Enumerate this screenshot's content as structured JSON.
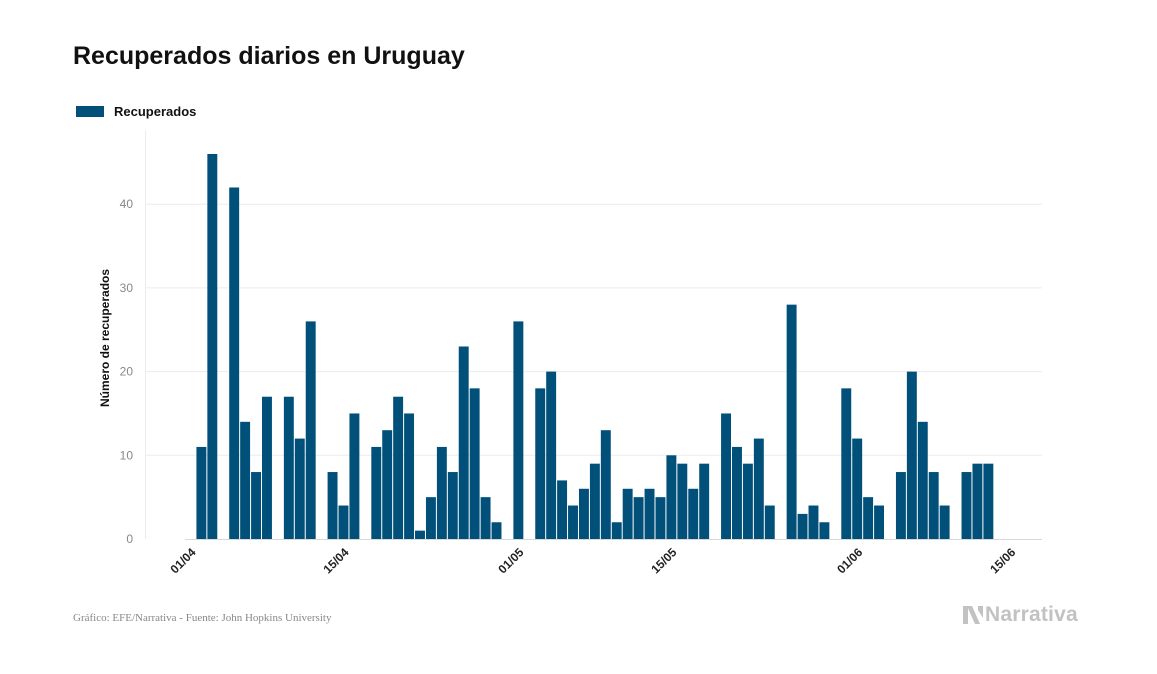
{
  "chart_data": {
    "type": "bar",
    "title": "Recuperados diarios en Uruguay",
    "ylabel": "Número de recuperados",
    "xlabel": "",
    "ylim": [
      0,
      46
    ],
    "yticks": [
      0,
      10,
      20,
      30,
      40
    ],
    "xtick_labels": [
      {
        "label": "01/04",
        "day_index": 0
      },
      {
        "label": "15/04",
        "day_index": 14
      },
      {
        "label": "01/05",
        "day_index": 30
      },
      {
        "label": "15/05",
        "day_index": 44
      },
      {
        "label": "01/06",
        "day_index": 61
      },
      {
        "label": "15/06",
        "day_index": 75
      }
    ],
    "categories": [
      "01/04",
      "02/04",
      "03/04",
      "04/04",
      "05/04",
      "06/04",
      "07/04",
      "08/04",
      "09/04",
      "10/04",
      "11/04",
      "12/04",
      "13/04",
      "14/04",
      "15/04",
      "16/04",
      "17/04",
      "18/04",
      "19/04",
      "20/04",
      "21/04",
      "22/04",
      "23/04",
      "24/04",
      "25/04",
      "26/04",
      "27/04",
      "28/04",
      "29/04",
      "30/04",
      "01/05",
      "02/05",
      "03/05",
      "04/05",
      "05/05",
      "06/05",
      "07/05",
      "08/05",
      "09/05",
      "10/05",
      "11/05",
      "12/05",
      "13/05",
      "14/05",
      "15/05",
      "16/05",
      "17/05",
      "18/05",
      "19/05",
      "20/05",
      "21/05",
      "22/05",
      "23/05",
      "24/05",
      "25/05",
      "26/05",
      "27/05",
      "28/05",
      "29/05",
      "30/05",
      "31/05",
      "01/06",
      "02/06",
      "03/06",
      "04/06",
      "05/06",
      "06/06",
      "07/06",
      "08/06",
      "09/06",
      "10/06",
      "11/06",
      "12/06",
      "13/06",
      "14/06",
      "15/06",
      "16/06",
      "17/06",
      "18/06",
      "19/06"
    ],
    "series": [
      {
        "name": "Recuperados",
        "color": "#00507a",
        "values": [
          0,
          11,
          46,
          0,
          42,
          14,
          8,
          17,
          0,
          17,
          12,
          26,
          0,
          8,
          4,
          15,
          0,
          11,
          13,
          17,
          15,
          1,
          5,
          11,
          8,
          23,
          18,
          5,
          2,
          0,
          26,
          0,
          18,
          20,
          7,
          4,
          6,
          9,
          13,
          2,
          6,
          5,
          6,
          5,
          10,
          9,
          6,
          9,
          0,
          15,
          11,
          9,
          12,
          4,
          0,
          28,
          3,
          4,
          2,
          0,
          18,
          12,
          5,
          4,
          0,
          8,
          20,
          14,
          8,
          4,
          0,
          8,
          9,
          9,
          0,
          0,
          0,
          0,
          0,
          0
        ]
      }
    ]
  },
  "source_text": "Gráfico: EFE/Narrativa - Fuente: John Hopkins University",
  "brand_text": "Narrativa"
}
